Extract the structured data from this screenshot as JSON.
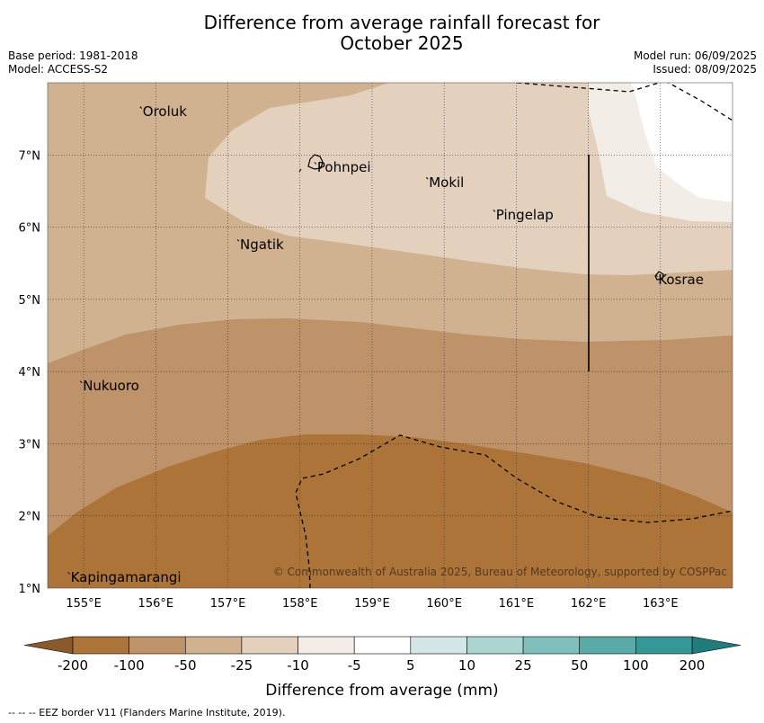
{
  "title_line1": "Difference from average rainfall forecast for",
  "title_line2": "October 2025",
  "base_period": "Base period: 1981-2018",
  "model": "Model: ACCESS-S2",
  "model_run": "Model run: 06/09/2025",
  "issued": "Issued: 08/09/2025",
  "copyright": "© Commonwealth of Australia 2025, Bureau of Meteorology, supported by COSPPac",
  "footnote": "--  --  -- EEZ border V11 (Flanders Marine Institute, 2019).",
  "map": {
    "lon_range": [
      154.5,
      164.0
    ],
    "lat_range": [
      1.0,
      8.0
    ],
    "x_ticks": [
      "155°E",
      "156°E",
      "157°E",
      "158°E",
      "159°E",
      "160°E",
      "161°E",
      "162°E",
      "163°E"
    ],
    "y_ticks": [
      "7°N",
      "6°N",
      "5°N",
      "4°N",
      "3°N",
      "2°N",
      "1°N"
    ],
    "grid": true,
    "places": [
      {
        "name": "Oroluk",
        "lon": 155.8,
        "lat": 7.65
      },
      {
        "name": "Pohnpei",
        "lon": 158.22,
        "lat": 6.88
      },
      {
        "name": "Mokil",
        "lon": 159.77,
        "lat": 6.67
      },
      {
        "name": "Pingelap",
        "lon": 160.7,
        "lat": 6.22
      },
      {
        "name": "Ngatik",
        "lon": 157.15,
        "lat": 5.81
      },
      {
        "name": "Kosrae",
        "lon": 162.95,
        "lat": 5.32
      },
      {
        "name": "Nukuoro",
        "lon": 154.97,
        "lat": 3.85
      },
      {
        "name": "Kapingamarangi",
        "lon": 154.8,
        "lat": 1.2
      }
    ]
  },
  "colorbar": {
    "label": "Difference from average (mm)",
    "ticks": [
      "-200",
      "-100",
      "-50",
      "-25",
      "-10",
      "-5",
      "5",
      "10",
      "25",
      "50",
      "100",
      "200"
    ],
    "colors": [
      "#ad743a",
      "#bf936a",
      "#d1b290",
      "#e3d0bd",
      "#f2ede7",
      "#ffffff",
      "#d3e8e6",
      "#acd5d2",
      "#80bfbc",
      "#5aaaa7",
      "#359896"
    ],
    "under_color": "#8b5a2b",
    "over_color": "#217d7b"
  }
}
